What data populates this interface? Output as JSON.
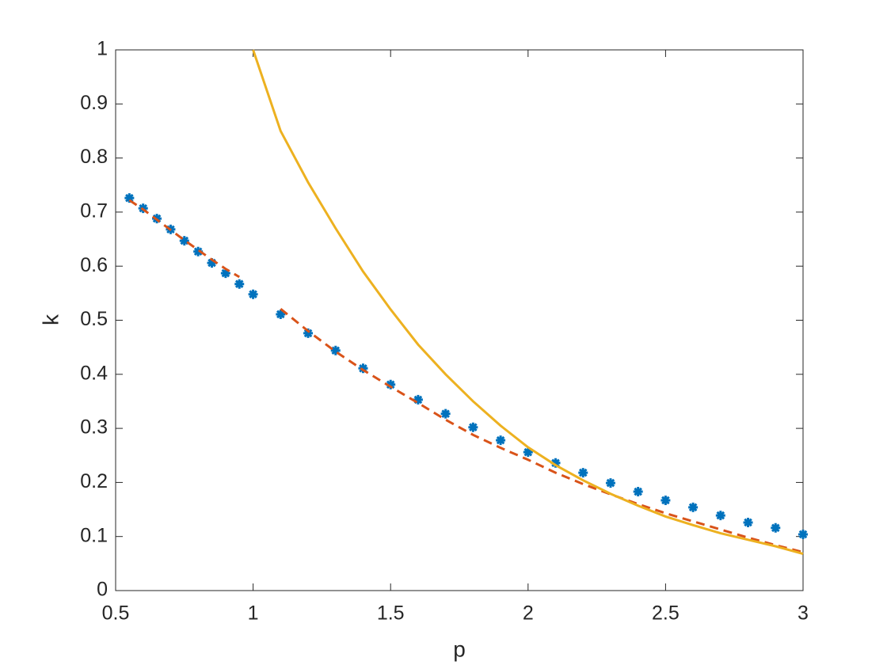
{
  "chart_data": {
    "type": "line",
    "xlabel": "p",
    "ylabel": "k",
    "xlim": [
      0.5,
      3
    ],
    "ylim": [
      0,
      1
    ],
    "xticks": [
      0.5,
      1,
      1.5,
      2,
      2.5,
      3
    ],
    "yticks": [
      0,
      0.1,
      0.2,
      0.3,
      0.4,
      0.5,
      0.6,
      0.7,
      0.8,
      0.9,
      1
    ],
    "grid": false,
    "series": [
      {
        "style": "asterisk",
        "color": "#0072bd",
        "x": [
          0.55,
          0.6,
          0.65,
          0.7,
          0.75,
          0.8,
          0.85,
          0.9,
          0.95,
          1.0,
          1.1,
          1.2,
          1.3,
          1.4,
          1.5,
          1.6,
          1.7,
          1.8,
          1.9,
          2.0,
          2.1,
          2.2,
          2.3,
          2.4,
          2.5,
          2.6,
          2.7,
          2.8,
          2.9,
          3.0
        ],
        "values": [
          0.726,
          0.707,
          0.688,
          0.668,
          0.647,
          0.627,
          0.606,
          0.587,
          0.567,
          0.548,
          0.511,
          0.476,
          0.444,
          0.411,
          0.381,
          0.353,
          0.327,
          0.302,
          0.278,
          0.256,
          0.236,
          0.218,
          0.199,
          0.183,
          0.167,
          0.154,
          0.139,
          0.126,
          0.116,
          0.104
        ]
      },
      {
        "style": "dashed",
        "color": "#d95319",
        "x": [
          0.55,
          0.6,
          0.65,
          0.7,
          0.75,
          0.8,
          0.85,
          0.9,
          0.95,
          1.0,
          1.1,
          1.2,
          1.3,
          1.4,
          1.5,
          1.6,
          1.7,
          1.8,
          1.9,
          2.0,
          2.1,
          2.2,
          2.3,
          2.4,
          2.5,
          2.6,
          2.7,
          2.8,
          2.9,
          3.0
        ],
        "values": [
          0.722,
          0.705,
          0.686,
          0.667,
          0.648,
          0.63,
          0.612,
          0.595,
          0.58,
          null,
          0.521,
          0.48,
          0.442,
          0.408,
          0.377,
          0.347,
          0.316,
          0.288,
          0.264,
          0.242,
          0.218,
          0.197,
          0.178,
          0.16,
          0.143,
          0.128,
          0.113,
          0.098,
          0.084,
          0.071
        ]
      },
      {
        "style": "solid",
        "color": "#edb120",
        "x": [
          1.0,
          1.1,
          1.2,
          1.3,
          1.4,
          1.5,
          1.6,
          1.7,
          1.8,
          1.9,
          2.0,
          2.1,
          2.2,
          2.3,
          2.4,
          2.5,
          2.6,
          2.7,
          2.8,
          2.9,
          3.0
        ],
        "values": [
          1.0,
          0.85,
          0.755,
          0.67,
          0.59,
          0.52,
          0.455,
          0.4,
          0.35,
          0.305,
          0.265,
          0.232,
          0.204,
          0.179,
          0.157,
          0.137,
          0.121,
          0.106,
          0.094,
          0.082,
          0.068
        ]
      }
    ]
  }
}
